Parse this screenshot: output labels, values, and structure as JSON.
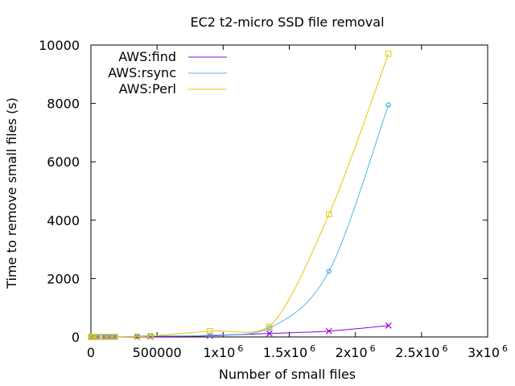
{
  "chart_data": {
    "type": "line",
    "title": "EC2 t2-micro SSD file removal",
    "xlabel": "Number of small files",
    "ylabel": "Time to remove small files (s)",
    "xlim": [
      0,
      3000000
    ],
    "ylim": [
      0,
      10000
    ],
    "x_ticks": [
      {
        "value": 0,
        "label": "0",
        "exp": ""
      },
      {
        "value": 500000,
        "label": "500000",
        "exp": ""
      },
      {
        "value": 1000000,
        "label": "1x10",
        "exp": "6"
      },
      {
        "value": 1500000,
        "label": "1.5x10",
        "exp": "6"
      },
      {
        "value": 2000000,
        "label": "2x10",
        "exp": "6"
      },
      {
        "value": 2500000,
        "label": "2.5x10",
        "exp": "6"
      },
      {
        "value": 3000000,
        "label": "3x10",
        "exp": "6"
      }
    ],
    "y_ticks": [
      {
        "value": 0,
        "label": "0"
      },
      {
        "value": 2000,
        "label": "2000"
      },
      {
        "value": 4000,
        "label": "4000"
      },
      {
        "value": 6000,
        "label": "6000"
      },
      {
        "value": 8000,
        "label": "8000"
      },
      {
        "value": 10000,
        "label": "10000"
      }
    ],
    "grid": false,
    "legend_position": "top-left",
    "series": [
      {
        "name": "AWS:find",
        "color": "#9400d3",
        "marker": "cross",
        "x": [
          1000,
          10000,
          20000,
          50000,
          100000,
          140000,
          180000,
          350000,
          450000,
          900000,
          1350000,
          1800000,
          2250000
        ],
        "y": [
          0,
          0,
          0,
          1,
          2,
          2,
          3,
          5,
          8,
          40,
          120,
          200,
          390
        ]
      },
      {
        "name": "AWS:rsync",
        "color": "#56b4e9",
        "marker": "circle",
        "x": [
          1000,
          10000,
          20000,
          50000,
          100000,
          140000,
          180000,
          350000,
          450000,
          900000,
          1350000,
          1800000,
          2250000
        ],
        "y": [
          0,
          0,
          0,
          1,
          2,
          3,
          4,
          20,
          40,
          60,
          300,
          2250,
          7950
        ]
      },
      {
        "name": "AWS:Perl",
        "color": "#e6c700",
        "marker": "square",
        "x": [
          1000,
          10000,
          20000,
          50000,
          100000,
          140000,
          180000,
          350000,
          450000,
          900000,
          1350000,
          1800000,
          2250000
        ],
        "y": [
          0,
          0,
          0,
          1,
          2,
          3,
          4,
          15,
          30,
          200,
          350,
          4200,
          9700
        ]
      }
    ]
  }
}
